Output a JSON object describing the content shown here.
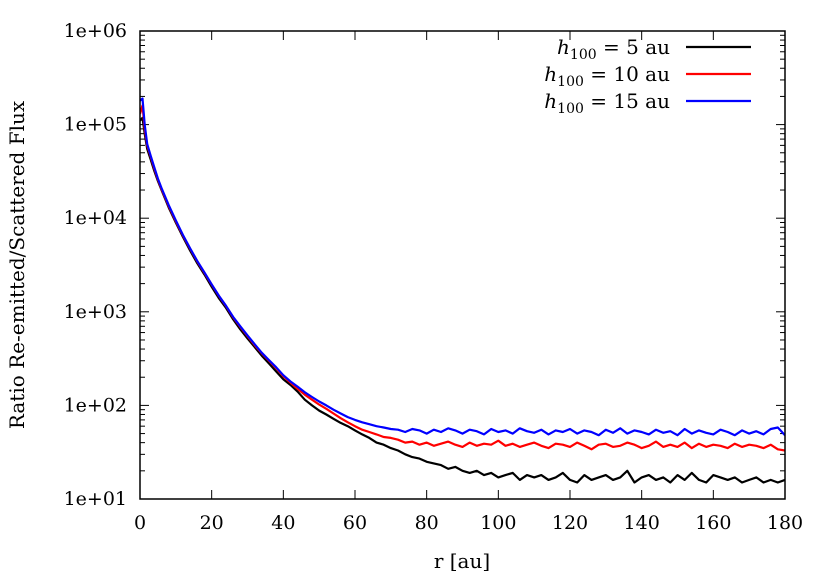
{
  "chart_data": {
    "type": "line",
    "title": "",
    "xlabel": "r [au]",
    "ylabel": "Ratio Re-emitted/Scattered Flux",
    "xlim": [
      0,
      180
    ],
    "ylim": [
      10,
      1000000
    ],
    "yscale": "log",
    "grid": false,
    "legend_position": "top-right",
    "x_ticks": [
      0,
      20,
      40,
      60,
      80,
      100,
      120,
      140,
      160,
      180
    ],
    "x_tick_labels": [
      "0",
      "20",
      "40",
      "60",
      "80",
      "100",
      "120",
      "140",
      "160",
      "180"
    ],
    "y_ticks": [
      10,
      100,
      1000,
      10000,
      100000,
      1000000
    ],
    "y_tick_labels": [
      "1e+01",
      "1e+02",
      "1e+03",
      "1e+04",
      "1e+05",
      "1e+06"
    ],
    "x": [
      0,
      0.7,
      1.3,
      2,
      3,
      4,
      5,
      6,
      8,
      10,
      12,
      14,
      16,
      18,
      20,
      22,
      24,
      26,
      28,
      30,
      32,
      34,
      36,
      38,
      40,
      42,
      44,
      46,
      48,
      50,
      52,
      54,
      56,
      58,
      60,
      62,
      64,
      66,
      68,
      70,
      72,
      74,
      76,
      78,
      80,
      82,
      84,
      86,
      88,
      90,
      92,
      94,
      96,
      98,
      100,
      102,
      104,
      106,
      108,
      110,
      112,
      114,
      116,
      118,
      120,
      122,
      124,
      126,
      128,
      130,
      132,
      134,
      136,
      138,
      140,
      142,
      144,
      146,
      148,
      150,
      152,
      154,
      156,
      158,
      160,
      162,
      164,
      166,
      168,
      170,
      172,
      174,
      176,
      178,
      180
    ],
    "series": [
      {
        "name": "h_100 = 5 au",
        "color": "#000000",
        "values": [
          110000,
          118000,
          80000,
          55000,
          42000,
          32000,
          25000,
          20000,
          13000,
          9000,
          6300,
          4500,
          3300,
          2500,
          1850,
          1400,
          1100,
          830,
          650,
          520,
          420,
          340,
          280,
          230,
          190,
          165,
          140,
          115,
          100,
          88,
          80,
          72,
          65,
          60,
          54,
          49,
          45,
          40,
          38,
          35,
          33,
          30,
          28,
          27,
          25,
          24,
          23,
          21,
          22,
          20,
          19,
          20,
          18,
          19,
          17,
          18,
          19,
          16,
          18,
          17,
          18,
          16,
          17,
          19,
          16,
          15,
          18,
          16,
          17,
          18,
          16,
          17,
          20,
          15,
          17,
          18,
          16,
          17,
          15,
          18,
          16,
          19,
          16,
          15,
          18,
          17,
          16,
          17,
          15,
          16,
          17,
          15,
          16,
          15,
          16
        ]
      },
      {
        "name": "h_100 = 10 au",
        "color": "#ff0000",
        "values": [
          130000,
          160000,
          90000,
          60000,
          45000,
          34000,
          26000,
          20500,
          13500,
          9300,
          6500,
          4700,
          3450,
          2600,
          1950,
          1480,
          1150,
          870,
          690,
          550,
          440,
          360,
          300,
          250,
          205,
          175,
          150,
          130,
          115,
          102,
          92,
          82,
          73,
          66,
          60,
          55,
          52,
          49,
          46,
          45,
          43,
          40,
          41,
          38,
          40,
          37,
          39,
          41,
          38,
          36,
          40,
          37,
          39,
          38,
          42,
          37,
          39,
          36,
          38,
          40,
          37,
          35,
          39,
          38,
          36,
          40,
          37,
          34,
          38,
          39,
          36,
          37,
          40,
          38,
          35,
          37,
          41,
          36,
          38,
          36,
          40,
          35,
          39,
          36,
          38,
          37,
          35,
          39,
          36,
          38,
          37,
          35,
          38,
          34,
          33
        ]
      },
      {
        "name": "h_100 = 15 au",
        "color": "#0000ff",
        "values": [
          180000,
          190000,
          100000,
          62000,
          46000,
          35000,
          26500,
          21000,
          13800,
          9500,
          6600,
          4750,
          3480,
          2620,
          1960,
          1490,
          1160,
          880,
          700,
          560,
          450,
          365,
          305,
          255,
          210,
          180,
          158,
          138,
          123,
          110,
          100,
          90,
          82,
          75,
          70,
          66,
          63,
          60,
          58,
          56,
          55,
          52,
          56,
          54,
          50,
          55,
          52,
          57,
          54,
          50,
          55,
          53,
          49,
          56,
          52,
          54,
          50,
          57,
          53,
          51,
          55,
          49,
          54,
          52,
          56,
          50,
          54,
          52,
          48,
          55,
          51,
          57,
          50,
          54,
          52,
          49,
          55,
          51,
          53,
          48,
          56,
          50,
          54,
          51,
          49,
          55,
          52,
          48,
          54,
          50,
          53,
          49,
          56,
          58,
          48
        ]
      }
    ]
  }
}
